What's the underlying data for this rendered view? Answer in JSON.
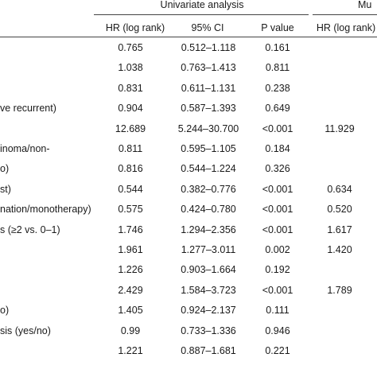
{
  "header": {
    "group_univariate": "Univariate analysis",
    "group_multivariate_partial": "Mu",
    "col_hr": "HR (log rank)",
    "col_ci": "95% CI",
    "col_p": "P value",
    "col_hr_multi": "HR (log rank)"
  },
  "rows": [
    {
      "label": "",
      "hr": "0.765",
      "ci": "0.512–1.118",
      "p": "0.161",
      "hr_multi": ""
    },
    {
      "label": "",
      "hr": "1.038",
      "ci": "0.763–1.413",
      "p": "0.811",
      "hr_multi": ""
    },
    {
      "label": "",
      "hr": "0.831",
      "ci": "0.611–1.131",
      "p": "0.238",
      "hr_multi": ""
    },
    {
      "label": "ve recurrent)",
      "hr": "0.904",
      "ci": "0.587–1.393",
      "p": "0.649",
      "hr_multi": ""
    },
    {
      "label": "",
      "hr": "12.689",
      "ci": "5.244–30.700",
      "p": "<0.001",
      "hr_multi": "11.929"
    },
    {
      "label": "inoma/non-",
      "hr": "0.811",
      "ci": "0.595–1.105",
      "p": "0.184",
      "hr_multi": ""
    },
    {
      "label": "o)",
      "hr": "0.816",
      "ci": "0.544–1.224",
      "p": "0.326",
      "hr_multi": ""
    },
    {
      "label": "st)",
      "hr": "0.544",
      "ci": "0.382–0.776",
      "p": "<0.001",
      "hr_multi": "0.634"
    },
    {
      "label": "nation/monotherapy)",
      "hr": "0.575",
      "ci": "0.424–0.780",
      "p": "<0.001",
      "hr_multi": "0.520"
    },
    {
      "label": "s (≥2 vs. 0–1)",
      "hr": "1.746",
      "ci": "1.294–2.356",
      "p": "<0.001",
      "hr_multi": "1.617"
    },
    {
      "label": "",
      "hr": "1.961",
      "ci": "1.277–3.011",
      "p": "0.002",
      "hr_multi": "1.420"
    },
    {
      "label": "",
      "hr": "1.226",
      "ci": "0.903–1.664",
      "p": "0.192",
      "hr_multi": ""
    },
    {
      "label": "",
      "hr": "2.429",
      "ci": "1.584–3.723",
      "p": "<0.001",
      "hr_multi": "1.789"
    },
    {
      "label": "o)",
      "hr": "1.405",
      "ci": "0.924–2.137",
      "p": "0.111",
      "hr_multi": ""
    },
    {
      "label": "sis (yes/no)",
      "hr": "0.99",
      "ci": "0.733–1.336",
      "p": "0.946",
      "hr_multi": ""
    },
    {
      "label": "",
      "hr": "1.221",
      "ci": "0.887–1.681",
      "p": "0.221",
      "hr_multi": ""
    }
  ]
}
